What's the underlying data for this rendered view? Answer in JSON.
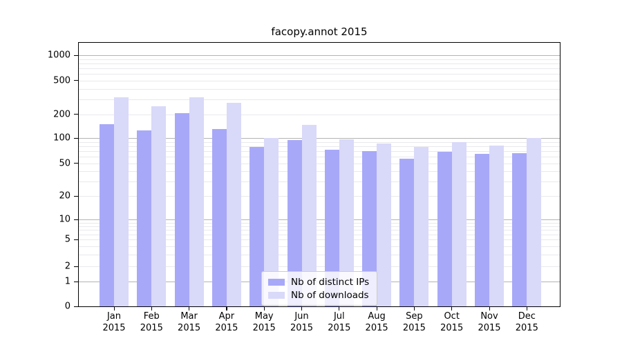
{
  "chart_data": {
    "type": "bar",
    "title": "facopy.annot 2015",
    "categories": [
      "Jan 2015",
      "Feb 2015",
      "Mar 2015",
      "Apr 2015",
      "May 2015",
      "Jun 2015",
      "Jul 2015",
      "Aug 2015",
      "Sep 2015",
      "Oct 2015",
      "Nov 2015",
      "Dec 2015"
    ],
    "xtick_months": [
      "Jan",
      "Feb",
      "Mar",
      "Apr",
      "May",
      "Jun",
      "Jul",
      "Aug",
      "Sep",
      "Oct",
      "Nov",
      "Dec"
    ],
    "xtick_year": "2015",
    "series": [
      {
        "name": "Nb of distinct IPs",
        "color": "#a8a8f8",
        "values": [
          150,
          125,
          205,
          130,
          78,
          95,
          73,
          70,
          57,
          68,
          65,
          66
        ]
      },
      {
        "name": "Nb of downloads",
        "color": "#d9d9f9",
        "values": [
          315,
          248,
          320,
          272,
          100,
          148,
          97,
          86,
          78,
          90,
          81,
          100
        ]
      }
    ],
    "yscale": "symlog",
    "yticks": [
      0,
      1,
      2,
      5,
      10,
      20,
      50,
      100,
      200,
      500,
      1000
    ],
    "ylim": [
      0,
      1400
    ],
    "grid": true,
    "grid_major_color": "#b3b3b3",
    "grid_minor_color": "#e9e9ec",
    "legend_position": "inside-bottom-center",
    "xlabel": "",
    "ylabel": ""
  }
}
